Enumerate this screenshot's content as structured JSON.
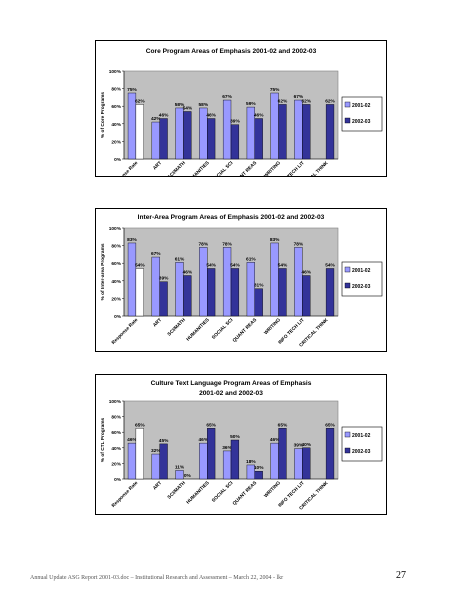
{
  "page": {
    "footer": "Annual Update ASG Report 2001-03.doc – Institutional Research and Assessment – March 22, 2004 - lkr",
    "page_number": "27"
  },
  "colors": {
    "s2001": "#9999ff",
    "s2002": "#333399",
    "response_rate": "#ffffff",
    "plot_bg": "#c0c0c0"
  },
  "chart_data": [
    {
      "type": "bar",
      "title": "Core Program Areas of Emphasis 2001-02 and 2002-03",
      "title_lines": [
        "Core Program Areas of Emphasis 2001-02 and 2002-03"
      ],
      "ylabel": "% of Core Programs",
      "xlabel": "",
      "ylim": [
        0,
        100
      ],
      "yticks": [
        "0%",
        "20%",
        "40%",
        "60%",
        "80%",
        "100%"
      ],
      "grid": false,
      "legend_position": "right",
      "categories": [
        "Response Rate",
        "ART",
        "SCI/MATH",
        "HUMANITIES",
        "SOCIAL SCI",
        "QUANT REAS",
        "WRITING",
        "INFO TECH LIT",
        "CRITICAL THINK"
      ],
      "series": [
        {
          "name": "2001-02",
          "values": [
            75,
            42,
            58,
            58,
            67,
            59,
            75,
            67,
            null
          ],
          "labels": [
            "75%",
            "42%",
            "58%",
            "58%",
            "67%",
            "59%",
            "75%",
            "67%",
            ""
          ]
        },
        {
          "name": "2002-03",
          "values": [
            62,
            46,
            54,
            46,
            39,
            46,
            62,
            62,
            62
          ],
          "labels": [
            "62%",
            "46%",
            "54%",
            "46%",
            "39%",
            "46%",
            "62%",
            "62%",
            "62%"
          ]
        }
      ]
    },
    {
      "type": "bar",
      "title": "Inter-Area Program Areas of Emphasis 2001-02 and 2002-03",
      "title_lines": [
        "Inter-Area Program Areas of Emphasis 2001-02 and 2002-03"
      ],
      "ylabel": "% of Inter-area Programs",
      "xlabel": "",
      "ylim": [
        0,
        100
      ],
      "yticks": [
        "0%",
        "20%",
        "40%",
        "60%",
        "80%",
        "100%"
      ],
      "grid": false,
      "legend_position": "right",
      "categories": [
        "Response Rate",
        "ART",
        "SCI/MATH",
        "HUMANITIES",
        "SOCIAL SCI",
        "QUANT REAS",
        "WRITING",
        "INFO TECH LIT",
        "CRITICAL THINK"
      ],
      "series": [
        {
          "name": "2001-02",
          "values": [
            83,
            67,
            61,
            78,
            78,
            61,
            83,
            78,
            null
          ],
          "labels": [
            "83%",
            "67%",
            "61%",
            "78%",
            "78%",
            "61%",
            "83%",
            "78%",
            ""
          ]
        },
        {
          "name": "2002-03",
          "values": [
            54,
            39,
            46,
            54,
            54,
            31,
            54,
            46,
            54
          ],
          "labels": [
            "54%",
            "39%",
            "46%",
            "54%",
            "54%",
            "31%",
            "54%",
            "46%",
            "54%"
          ]
        }
      ]
    },
    {
      "type": "bar",
      "title": "Culture Text Language Program Areas of Emphasis 2001-02 and 2002-03",
      "title_lines": [
        "Culture Text Language Program Areas of Emphasis",
        "2001-02 and 2002-03"
      ],
      "ylabel": "% of CTL Programs",
      "xlabel": "",
      "ylim": [
        0,
        100
      ],
      "yticks": [
        "0%",
        "20%",
        "40%",
        "60%",
        "80%",
        "100%"
      ],
      "grid": false,
      "legend_position": "right",
      "categories": [
        "Response Rate",
        "ART",
        "SCI/MATH",
        "HUMANITIES",
        "SOCIAL SCI",
        "QUANT REAS",
        "WRITING",
        "INFO TECH LIT",
        "CRITICAL THINK"
      ],
      "series": [
        {
          "name": "2001-02",
          "values": [
            46,
            32,
            11,
            46,
            36,
            18,
            46,
            39,
            null
          ],
          "labels": [
            "46%",
            "32%",
            "11%",
            "46%",
            "36%",
            "18%",
            "46%",
            "39%",
            ""
          ]
        },
        {
          "name": "2002-03",
          "values": [
            65,
            45,
            0,
            65,
            50,
            10,
            65,
            40,
            65
          ],
          "labels": [
            "65%",
            "45%",
            "0%",
            "65%",
            "50%",
            "10%",
            "65%",
            "40%",
            "65%"
          ]
        }
      ]
    }
  ]
}
